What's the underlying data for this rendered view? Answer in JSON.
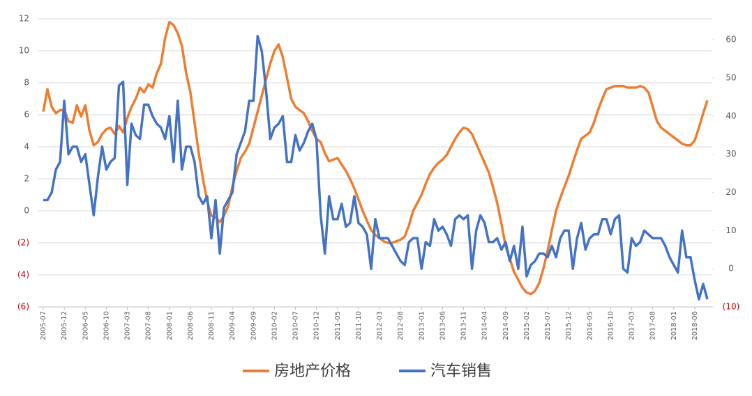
{
  "chart_data": {
    "type": "line",
    "categories": [
      "2005-07",
      null,
      null,
      null,
      null,
      "2005-12",
      null,
      null,
      null,
      null,
      "2006-05",
      null,
      null,
      null,
      null,
      "2006-10",
      null,
      null,
      null,
      null,
      "2007-03",
      null,
      null,
      null,
      null,
      "2007-08",
      null,
      null,
      null,
      null,
      "2008-01",
      null,
      null,
      null,
      null,
      "2008-06",
      null,
      null,
      null,
      null,
      "2008-11",
      null,
      null,
      null,
      null,
      "2009-04",
      null,
      null,
      null,
      null,
      "2009-09",
      null,
      null,
      null,
      null,
      "2010-02",
      null,
      null,
      null,
      null,
      "2010-07",
      null,
      null,
      null,
      null,
      "2010-12",
      null,
      null,
      null,
      null,
      "2011-05",
      null,
      null,
      null,
      null,
      "2011-10",
      null,
      null,
      null,
      null,
      "2012-03",
      null,
      null,
      null,
      null,
      "2012-08",
      null,
      null,
      null,
      null,
      "2013-01",
      null,
      null,
      null,
      null,
      "2013-06",
      null,
      null,
      null,
      null,
      "2013-11",
      null,
      null,
      null,
      null,
      "2014-04",
      null,
      null,
      null,
      null,
      "2014-09",
      null,
      null,
      null,
      null,
      "2015-02",
      null,
      null,
      null,
      null,
      "2015-07",
      null,
      null,
      null,
      null,
      "2015-12",
      null,
      null,
      null,
      null,
      "2016-05",
      null,
      null,
      null,
      null,
      "2016-10",
      null,
      null,
      null,
      null,
      "2017-03",
      null,
      null,
      null,
      null,
      "2017-08",
      null,
      null,
      null,
      null,
      "2018-01",
      null,
      null,
      null,
      null,
      "2018-06",
      null,
      null,
      null
    ],
    "series": [
      {
        "name": "房地产价格",
        "color": "#ed7d31",
        "values": [
          6.2,
          7.6,
          6.5,
          6.1,
          6.3,
          6.3,
          5.6,
          5.5,
          6.6,
          5.9,
          6.6,
          5.0,
          4.1,
          4.3,
          4.8,
          5.1,
          5.2,
          4.8,
          5.3,
          4.9,
          5.8,
          6.5,
          7.0,
          7.7,
          7.4,
          7.9,
          7.7,
          8.6,
          9.2,
          10.8,
          11.8,
          11.6,
          11.1,
          10.3,
          8.6,
          7.4,
          5.5,
          3.6,
          2.0,
          0.6,
          -0.3,
          -0.4,
          -0.7,
          -0.3,
          0.3,
          1.5,
          2.5,
          3.3,
          3.7,
          4.2,
          5.2,
          6.2,
          7.2,
          8.2,
          9.2,
          10.0,
          10.4,
          9.6,
          8.3,
          7.0,
          6.5,
          6.3,
          6.1,
          5.6,
          5.0,
          4.5,
          4.3,
          3.6,
          3.1,
          3.2,
          3.3,
          2.9,
          2.5,
          2.0,
          1.4,
          0.7,
          0.0,
          -0.6,
          -1.2,
          -1.5,
          -1.7,
          -1.9,
          -2.0,
          -2.0,
          -1.9,
          -1.8,
          -1.6,
          -0.9,
          0.0,
          0.5,
          1.0,
          1.7,
          2.3,
          2.7,
          3.0,
          3.2,
          3.5,
          4.0,
          4.5,
          4.9,
          5.2,
          5.1,
          4.8,
          4.2,
          3.6,
          3.0,
          2.4,
          1.5,
          0.5,
          -0.8,
          -2.2,
          -3.0,
          -3.8,
          -4.3,
          -4.8,
          -5.1,
          -5.2,
          -5.0,
          -4.5,
          -3.6,
          -2.5,
          -1.2,
          0.0,
          0.8,
          1.5,
          2.2,
          3.0,
          3.8,
          4.5,
          4.7,
          4.9,
          5.5,
          6.3,
          7.0,
          7.6,
          7.7,
          7.8,
          7.8,
          7.8,
          7.7,
          7.7,
          7.7,
          7.8,
          7.7,
          7.4,
          6.5,
          5.6,
          5.2,
          5.0,
          4.8,
          4.6,
          4.4,
          4.2,
          4.1,
          4.1,
          4.4,
          5.2,
          6.1,
          6.9
        ]
      },
      {
        "name": "汽车销售",
        "color": "#4472c4",
        "axis": "y2",
        "values": [
          18,
          18,
          20,
          26,
          28,
          44,
          30,
          32,
          32,
          28,
          30,
          22,
          14,
          24,
          32,
          26,
          28,
          29,
          48,
          49,
          22,
          38,
          35,
          34,
          43,
          43,
          40,
          38,
          37,
          34,
          40,
          28,
          44,
          26,
          32,
          32,
          28,
          19,
          17,
          19,
          8,
          18,
          4,
          16,
          18,
          20,
          30,
          33,
          36,
          44,
          44,
          61,
          57,
          47,
          34,
          37,
          38,
          40,
          28,
          28,
          35,
          31,
          33,
          36,
          38,
          34,
          14,
          4,
          19,
          13,
          13,
          17,
          11,
          12,
          19,
          12,
          11,
          9,
          0,
          13,
          8,
          8,
          8,
          6,
          4,
          2,
          1,
          7,
          8,
          8,
          0,
          7,
          6,
          13,
          10,
          11,
          9,
          6,
          13,
          14,
          13,
          14,
          0,
          10,
          14,
          12,
          7,
          7,
          8,
          5,
          7,
          2,
          6,
          0,
          11,
          -2,
          1,
          2,
          4,
          4,
          3,
          6,
          3,
          8,
          10,
          10,
          0,
          8,
          12,
          5,
          8,
          9,
          9,
          13,
          13,
          9,
          13,
          14,
          0,
          -1,
          8,
          6,
          7,
          10,
          9,
          8,
          8,
          8,
          6,
          3,
          1,
          -1,
          10,
          3,
          3,
          -3,
          -8,
          -4,
          -8
        ]
      }
    ],
    "ylim": [
      -6,
      12
    ],
    "yticks": [
      {
        "value": -6,
        "label": "(6)"
      },
      {
        "value": -4,
        "label": "(4)"
      },
      {
        "value": -2,
        "label": "(2)"
      },
      0,
      2,
      4,
      6,
      8,
      10,
      12
    ],
    "y2lim": [
      -10,
      65.5
    ],
    "y2ticks": [
      {
        "value": -10,
        "label": "(10)"
      },
      0,
      10,
      20,
      30,
      40,
      50,
      60
    ],
    "negative_tick_color": "#c00000",
    "grid": true
  }
}
